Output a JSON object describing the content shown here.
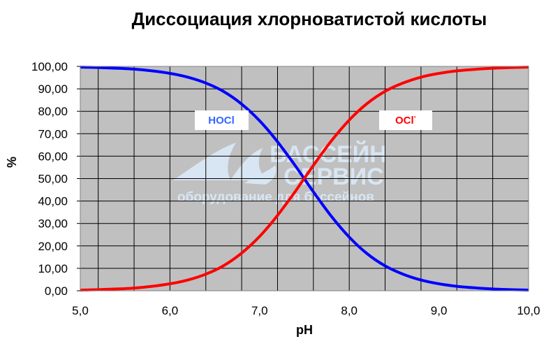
{
  "chart_data": {
    "type": "line",
    "title": "Диссоциация хлорноватистой кислоты",
    "xlabel": "pH",
    "ylabel": "%",
    "xlim": [
      5.0,
      10.0
    ],
    "ylim": [
      0,
      100
    ],
    "x_ticks": [
      "5,0",
      "6,0",
      "7,0",
      "8,0",
      "9,0",
      "10,0"
    ],
    "y_ticks": [
      "0,00",
      "10,00",
      "20,00",
      "30,00",
      "40,00",
      "50,00",
      "60,00",
      "70,00",
      "80,00",
      "90,00",
      "100,00"
    ],
    "grid": true,
    "plot_background": "#c0c0c0",
    "x": [
      5.0,
      5.2,
      5.4,
      5.6,
      5.8,
      6.0,
      6.2,
      6.4,
      6.6,
      6.8,
      7.0,
      7.2,
      7.4,
      7.6,
      7.8,
      8.0,
      8.2,
      8.4,
      8.6,
      8.8,
      9.0,
      9.2,
      9.4,
      9.6,
      9.8,
      10.0
    ],
    "series": [
      {
        "name": "HOCl",
        "color": "#0000ff",
        "values": [
          99.7,
          99.5,
          99.2,
          98.8,
          98.0,
          96.9,
          95.2,
          92.6,
          88.8,
          83.2,
          75.8,
          66.4,
          55.6,
          44.1,
          33.2,
          23.9,
          16.5,
          11.1,
          7.4,
          4.8,
          3.1,
          2.0,
          1.3,
          0.8,
          0.5,
          0.3
        ]
      },
      {
        "name": "OCl-",
        "color": "#ff0000",
        "values": [
          0.3,
          0.5,
          0.8,
          1.2,
          2.0,
          3.1,
          4.8,
          7.4,
          11.2,
          16.8,
          24.2,
          33.6,
          44.4,
          55.9,
          66.8,
          76.1,
          83.5,
          88.9,
          92.6,
          95.2,
          96.9,
          98.0,
          98.7,
          99.2,
          99.5,
          99.7
        ]
      }
    ],
    "labels": [
      {
        "text": "HOCl",
        "color": "#3366ff"
      },
      {
        "text": "OCl",
        "sup": "-",
        "color": "#ff0000"
      }
    ],
    "watermark": {
      "line1": "БАССЕЙН",
      "line2": "СЕРВИС",
      "line3": "оборудование для бассейнов"
    }
  }
}
